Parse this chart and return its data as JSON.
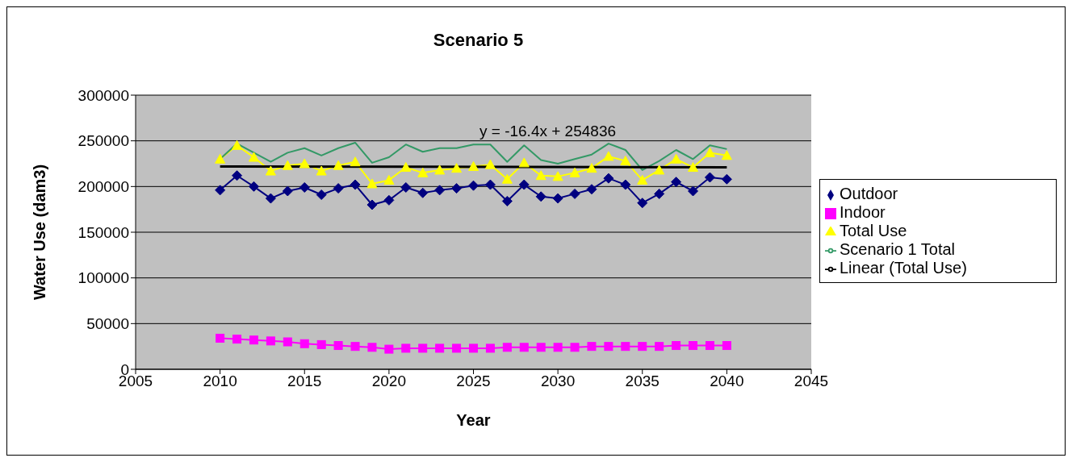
{
  "chart_data": {
    "type": "line",
    "title": "Scenario 5",
    "xlabel": "Year",
    "ylabel": "Water Use (dam3)",
    "xlim": [
      2005,
      2045
    ],
    "xticks": [
      2005,
      2010,
      2015,
      2020,
      2025,
      2030,
      2035,
      2040,
      2045
    ],
    "ylim": [
      0,
      300000
    ],
    "yticks": [
      0,
      50000,
      100000,
      150000,
      200000,
      250000,
      300000
    ],
    "grid": "y",
    "legend": "right",
    "annotations": [
      "y = -16.4x + 254836"
    ],
    "x": [
      2010,
      2011,
      2012,
      2013,
      2014,
      2015,
      2016,
      2017,
      2018,
      2019,
      2020,
      2021,
      2022,
      2023,
      2024,
      2025,
      2026,
      2027,
      2028,
      2029,
      2030,
      2031,
      2032,
      2033,
      2034,
      2035,
      2036,
      2037,
      2038,
      2039,
      2040
    ],
    "series": [
      {
        "name": "Outdoor",
        "color": "#000080",
        "marker": "diamond",
        "values": [
          196000,
          212000,
          200000,
          187000,
          195000,
          199000,
          191000,
          198000,
          202000,
          180000,
          185000,
          199000,
          193000,
          196000,
          198000,
          201000,
          202000,
          184000,
          202000,
          189000,
          187000,
          192000,
          197000,
          209000,
          202000,
          182000,
          192000,
          205000,
          195000,
          210000,
          208000
        ]
      },
      {
        "name": "Indoor",
        "color": "#ff00ff",
        "marker": "square",
        "values": [
          34000,
          33000,
          32000,
          31000,
          30000,
          28000,
          27000,
          26000,
          25000,
          24000,
          22000,
          23000,
          23000,
          23000,
          23000,
          23000,
          23000,
          24000,
          24000,
          24000,
          24000,
          24000,
          25000,
          25000,
          25000,
          25000,
          25000,
          26000,
          26000,
          26000,
          26000
        ]
      },
      {
        "name": "Total Use",
        "color": "#ffff00",
        "marker": "triangle",
        "values": [
          230000,
          245000,
          232000,
          217000,
          223000,
          225000,
          217000,
          223000,
          227000,
          203000,
          207000,
          221000,
          215000,
          218000,
          220000,
          222000,
          224000,
          208000,
          226000,
          212000,
          211000,
          215000,
          220000,
          233000,
          228000,
          207000,
          218000,
          230000,
          221000,
          237000,
          234000
        ]
      },
      {
        "name": "Scenario 1 Total",
        "color": "#339966",
        "marker": "none",
        "values": [
          230000,
          247000,
          237000,
          227000,
          237000,
          242000,
          234000,
          242000,
          248000,
          226000,
          232000,
          246000,
          238000,
          242000,
          242000,
          246000,
          246000,
          227000,
          245000,
          229000,
          225000,
          230000,
          235000,
          247000,
          240000,
          218000,
          228000,
          240000,
          230000,
          245000,
          241000
        ]
      },
      {
        "name": "Linear (Total Use)",
        "color": "#000000",
        "marker": "none",
        "x": [
          2010,
          2040
        ],
        "values": [
          222000,
          221000
        ]
      }
    ]
  }
}
